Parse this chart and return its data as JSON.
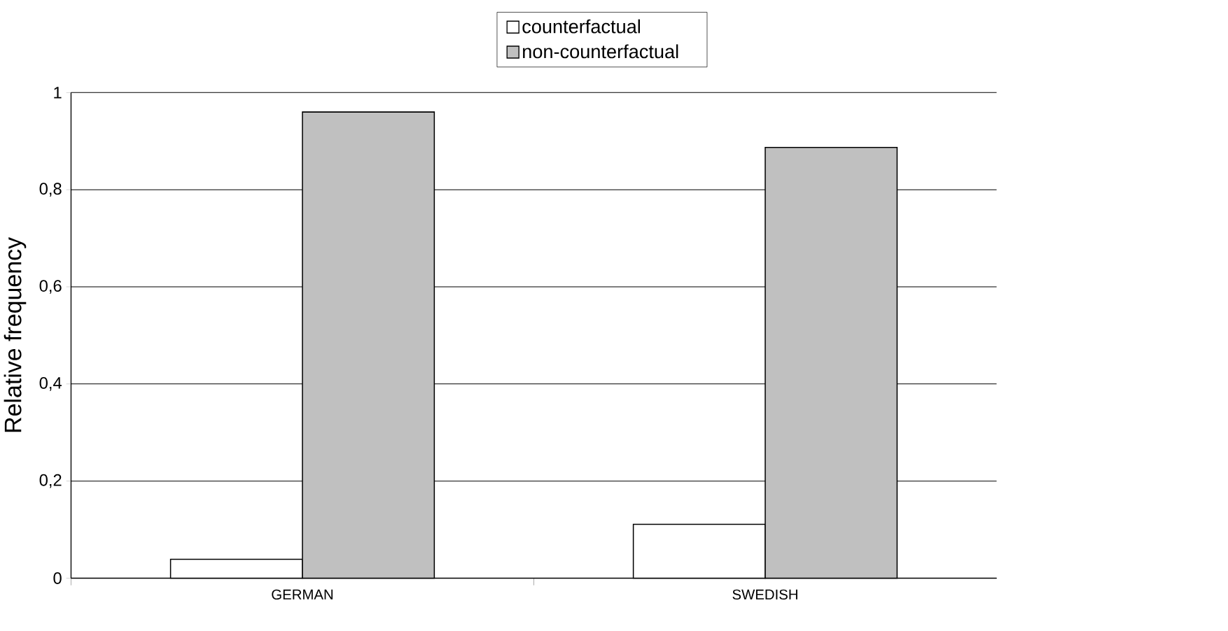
{
  "chart_data": {
    "type": "bar",
    "ylabel": "Relative frequency",
    "categories": [
      "GERMAN",
      "SWEDISH"
    ],
    "series": [
      {
        "name": "counterfactual",
        "color": "#ffffff",
        "values": [
          0.039,
          0.111
        ]
      },
      {
        "name": "non-counterfactual",
        "color": "#c0c0c0",
        "values": [
          0.96,
          0.887
        ]
      }
    ],
    "ylim": [
      0,
      1
    ],
    "yticks": [
      0,
      {
        "value": 0.2,
        "label": "0,2"
      },
      {
        "value": 0.4,
        "label": "0,4"
      },
      {
        "value": 0.6,
        "label": "0,6"
      },
      {
        "value": 0.8,
        "label": "0,8"
      },
      1
    ],
    "grid": "y",
    "legend": "top right"
  }
}
